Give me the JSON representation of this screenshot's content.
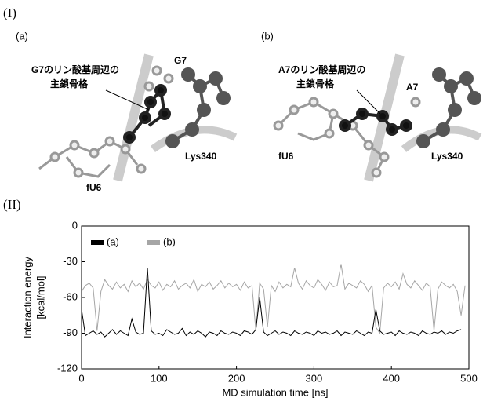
{
  "panel_i": {
    "label": "(I)",
    "a": {
      "label": "(a)",
      "annotation": [
        "G7のリン酸基周辺の",
        "主鎖骨格"
      ],
      "residue": "G7",
      "base": "fU6",
      "lys": "Lys340"
    },
    "b": {
      "label": "(b)",
      "annotation": [
        "A7のリン酸基周辺の",
        "主鎖骨格"
      ],
      "residue": "A7",
      "base": "fU6",
      "lys": "Lys340"
    }
  },
  "panel_ii": {
    "label": "(II)"
  },
  "chart_data": {
    "type": "line",
    "xlabel": "MD simulation time [ns]",
    "ylabel": [
      "Interaction energy",
      "[kcal/mol]"
    ],
    "xlim": [
      0,
      500
    ],
    "ylim": [
      -120,
      0
    ],
    "xticks": [
      0,
      100,
      200,
      300,
      400,
      500
    ],
    "yticks": [
      -120,
      -90,
      -60,
      -30,
      0
    ],
    "legend": "upper left",
    "x": [
      0,
      5,
      10,
      15,
      20,
      25,
      30,
      35,
      40,
      45,
      50,
      55,
      60,
      65,
      70,
      75,
      80,
      85,
      90,
      95,
      100,
      105,
      110,
      115,
      120,
      125,
      130,
      135,
      140,
      145,
      150,
      155,
      160,
      165,
      170,
      175,
      180,
      185,
      190,
      195,
      200,
      205,
      210,
      215,
      220,
      225,
      230,
      235,
      240,
      245,
      250,
      255,
      260,
      265,
      270,
      275,
      280,
      285,
      290,
      295,
      300,
      305,
      310,
      315,
      320,
      325,
      330,
      335,
      340,
      345,
      350,
      355,
      360,
      365,
      370,
      375,
      380,
      385,
      390,
      395,
      400,
      405,
      410,
      415,
      420,
      425,
      430,
      435,
      440,
      445,
      450,
      455,
      460,
      465,
      470,
      475,
      480,
      485,
      490,
      495
    ],
    "series": [
      {
        "name": "(a)",
        "color": "#000000",
        "values": [
          -70,
          -92,
          -90,
          -88,
          -91,
          -89,
          -93,
          -90,
          -87,
          -91,
          -88,
          -90,
          -92,
          -78,
          -89,
          -91,
          -90,
          -35,
          -88,
          -91,
          -90,
          -92,
          -87,
          -89,
          -91,
          -90,
          -86,
          -92,
          -89,
          -91,
          -88,
          -90,
          -93,
          -89,
          -90,
          -92,
          -88,
          -90,
          -91,
          -89,
          -90,
          -92,
          -88,
          -89,
          -91,
          -87,
          -60,
          -89,
          -92,
          -90,
          -88,
          -91,
          -89,
          -90,
          -92,
          -88,
          -90,
          -91,
          -89,
          -90,
          -92,
          -88,
          -90,
          -89,
          -91,
          -90,
          -88,
          -92,
          -89,
          -90,
          -91,
          -88,
          -90,
          -92,
          -89,
          -90,
          -70,
          -88,
          -91,
          -90,
          -89,
          -92,
          -88,
          -90,
          -91,
          -89,
          -90,
          -92,
          -88,
          -90,
          -91,
          -89,
          -90,
          -88,
          -91,
          -89,
          -90,
          -88,
          -87,
          null
        ]
      },
      {
        "name": "(b)",
        "color": "#a6a6a6",
        "values": [
          -55,
          -50,
          -48,
          -52,
          -88,
          -55,
          -45,
          -50,
          -53,
          -47,
          -52,
          -49,
          -55,
          -46,
          -51,
          -48,
          -53,
          -45,
          -50,
          -52,
          -47,
          -54,
          -49,
          -51,
          -46,
          -53,
          -50,
          -48,
          -52,
          -45,
          -55,
          -49,
          -51,
          -47,
          -53,
          -50,
          -46,
          -52,
          -48,
          -51,
          -49,
          -54,
          -47,
          -52,
          -50,
          -88,
          -48,
          -53,
          -85,
          -50,
          -55,
          -47,
          -52,
          -49,
          -51,
          -35,
          -48,
          -53,
          -46,
          -50,
          -52,
          -45,
          -49,
          -54,
          -47,
          -51,
          -50,
          -32,
          -53,
          -48,
          -50,
          -52,
          -46,
          -49,
          -55,
          -50,
          -85,
          -90,
          -52,
          -48,
          -51,
          -47,
          -53,
          -40,
          -49,
          -52,
          -46,
          -50,
          -54,
          -48,
          -51,
          -88,
          -53,
          -47,
          -50,
          -52,
          -49,
          -55,
          -75,
          -50
        ]
      }
    ]
  }
}
